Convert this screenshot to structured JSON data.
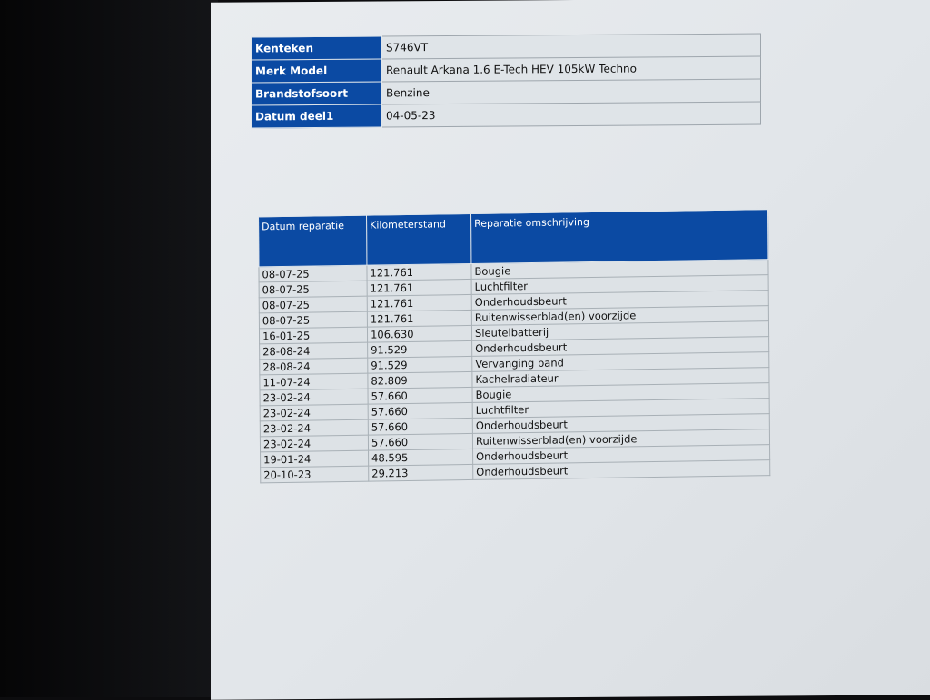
{
  "vehicle": [
    {
      "label": "Kenteken",
      "value": "S746VT"
    },
    {
      "label": "Merk Model",
      "value": "Renault Arkana 1.6 E-Tech HEV 105kW Techno"
    },
    {
      "label": "Brandstofsoort",
      "value": "Benzine"
    },
    {
      "label": "Datum deel1",
      "value": "04-05-23"
    }
  ],
  "repairs": {
    "headers": [
      "Datum reparatie",
      "Kilometerstand",
      "Reparatie omschrijving"
    ],
    "rows": [
      [
        "08-07-25",
        "121.761",
        "Bougie"
      ],
      [
        "08-07-25",
        "121.761",
        "Luchtfilter"
      ],
      [
        "08-07-25",
        "121.761",
        "Onderhoudsbeurt"
      ],
      [
        "08-07-25",
        "121.761",
        "Ruitenwisserblad(en) voorzijde"
      ],
      [
        "16-01-25",
        "106.630",
        "Sleutelbatterij"
      ],
      [
        "28-08-24",
        "91.529",
        "Onderhoudsbeurt"
      ],
      [
        "28-08-24",
        "91.529",
        "Vervanging band"
      ],
      [
        "11-07-24",
        "82.809",
        "Kachelradiateur"
      ],
      [
        "23-02-24",
        "57.660",
        "Bougie"
      ],
      [
        "23-02-24",
        "57.660",
        "Luchtfilter"
      ],
      [
        "23-02-24",
        "57.660",
        "Onderhoudsbeurt"
      ],
      [
        "23-02-24",
        "57.660",
        "Ruitenwisserblad(en) voorzijde"
      ],
      [
        "19-01-24",
        "48.595",
        "Onderhoudsbeurt"
      ],
      [
        "20-10-23",
        "29.213",
        "Onderhoudsbeurt"
      ]
    ]
  },
  "colors": {
    "header_blue": "#0b4aa3",
    "cell_bg": "#dde2e6"
  }
}
